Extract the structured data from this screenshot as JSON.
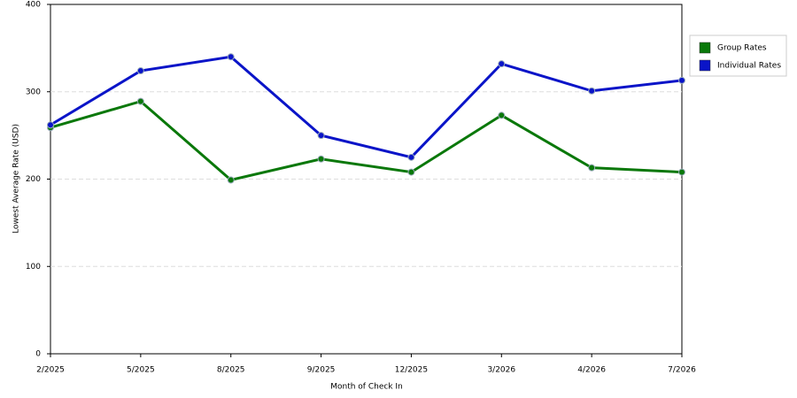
{
  "chart_data": {
    "type": "line",
    "x_label": "Month of Check In",
    "y_label": "Lowest Average Rate (USD)",
    "categories": [
      "2/2025",
      "5/2025",
      "8/2025",
      "9/2025",
      "12/2025",
      "3/2026",
      "4/2026",
      "7/2026"
    ],
    "series": [
      {
        "name": "Group Rates",
        "color": "#0a780a",
        "values": [
          259,
          289,
          199,
          223,
          208,
          273,
          213,
          208
        ]
      },
      {
        "name": "Individual Rates",
        "color": "#0a14c8",
        "values": [
          262,
          324,
          340,
          250,
          225,
          332,
          301,
          313
        ]
      }
    ],
    "ylim": [
      0,
      400
    ],
    "yticks": [
      0,
      100,
      200,
      300,
      400
    ],
    "grid": true,
    "legend": "right"
  }
}
